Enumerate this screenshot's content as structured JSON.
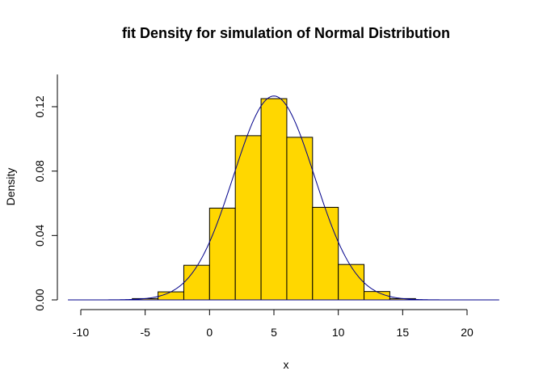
{
  "chart_data": {
    "type": "bar",
    "title": "fit Density for simulation of Normal Distribution",
    "xlabel": "x",
    "ylabel": "Density",
    "xlim": [
      -10,
      22.5
    ],
    "ylim": [
      0,
      0.14
    ],
    "x_ticks": [
      "-10",
      "-5",
      "0",
      "5",
      "10",
      "15",
      "20"
    ],
    "y_ticks": [
      "0.00",
      "0.04",
      "0.08",
      "0.12"
    ],
    "bins": [
      {
        "from": -6,
        "to": -4,
        "density": 0.0008
      },
      {
        "from": -4,
        "to": -2,
        "density": 0.005
      },
      {
        "from": -2,
        "to": 0,
        "density": 0.0215
      },
      {
        "from": 0,
        "to": 2,
        "density": 0.057
      },
      {
        "from": 2,
        "to": 4,
        "density": 0.102
      },
      {
        "from": 4,
        "to": 6,
        "density": 0.125
      },
      {
        "from": 6,
        "to": 8,
        "density": 0.101
      },
      {
        "from": 8,
        "to": 10,
        "density": 0.0575
      },
      {
        "from": 10,
        "to": 12,
        "density": 0.022
      },
      {
        "from": 12,
        "to": 14,
        "density": 0.0052
      },
      {
        "from": 14,
        "to": 16,
        "density": 0.0008
      }
    ],
    "density_curve": {
      "distribution": "normal",
      "mean": 5,
      "sd": 3.15,
      "color": "#00008B"
    },
    "bar_fill": "#FFD700",
    "bar_stroke": "#000000",
    "grid": false,
    "legend": "none"
  }
}
